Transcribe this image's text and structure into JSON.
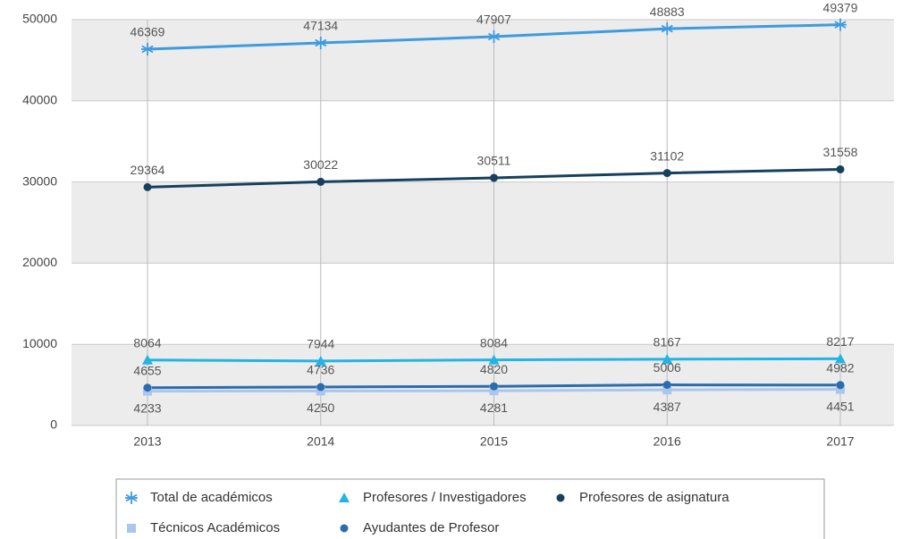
{
  "chart_data": {
    "type": "line",
    "categories": [
      "2013",
      "2014",
      "2015",
      "2016",
      "2017"
    ],
    "ylim": [
      0,
      50000
    ],
    "yticks": [
      0,
      10000,
      20000,
      30000,
      40000,
      50000
    ],
    "grid": true,
    "series": [
      {
        "name": "Total de académicos",
        "color": "#3d9be0",
        "marker": "asterisk",
        "values": [
          46369,
          47134,
          47907,
          48883,
          49379
        ]
      },
      {
        "name": "Profesores / Investigadores",
        "color": "#22b4e6",
        "marker": "triangle",
        "values": [
          8064,
          7944,
          8084,
          8167,
          8217
        ]
      },
      {
        "name": "Profesores de asignatura",
        "color": "#17405f",
        "marker": "circle",
        "values": [
          29364,
          30022,
          30511,
          31102,
          31558
        ]
      },
      {
        "name": "Técnicos Académicos",
        "color": "#a9c6ec",
        "marker": "square",
        "values": [
          4233,
          4250,
          4281,
          4387,
          4451
        ]
      },
      {
        "name": "Ayudantes de Profesor",
        "color": "#2a6cae",
        "marker": "circle",
        "values": [
          4655,
          4736,
          4820,
          5006,
          4982
        ]
      }
    ]
  }
}
